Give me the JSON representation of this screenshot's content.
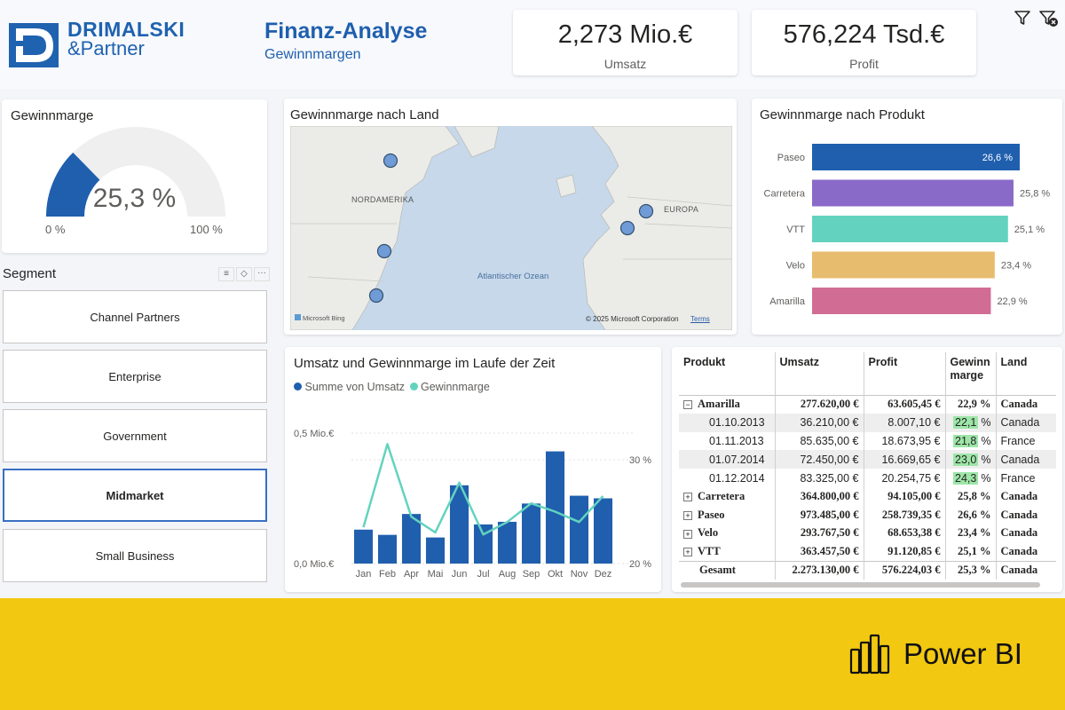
{
  "header": {
    "logo_line1": "DRIMALSKI",
    "logo_line2": "&Partner",
    "title": "Finanz-Analyse",
    "subtitle": "Gewinnmargen"
  },
  "kpis": [
    {
      "value": "2,273 Mio.€",
      "label": "Umsatz"
    },
    {
      "value": "576,224 Tsd.€",
      "label": "Profit"
    }
  ],
  "toolbar": {
    "filter_icon": "filter-icon",
    "clear_filter_icon": "clear-filter-icon"
  },
  "gauge": {
    "title": "Gewinnmarge",
    "value_label": "25,3 %",
    "value": 25.3,
    "min_label": "0 %",
    "max_label": "100 %",
    "fill_color": "#1f5fae",
    "track_color": "#efefef"
  },
  "segment": {
    "title": "Segment",
    "items": [
      "Channel Partners",
      "Enterprise",
      "Government",
      "Midmarket",
      "Small Business"
    ],
    "selected": "Midmarket"
  },
  "map": {
    "title": "Gewinnmarge nach Land",
    "labels": {
      "na": "NORDAMERIKA",
      "eu": "EUROPA",
      "ocean": "Atlantischer Ozean"
    },
    "attribution": "Microsoft Bing",
    "copyright": "© 2025 Microsoft Corporation",
    "terms": "Terms",
    "bubble_color": "#6f9bd6"
  },
  "product_chart": {
    "title": "Gewinnmarge nach Produkt"
  },
  "time_chart": {
    "title": "Umsatz und Gewinnmarge im Laufe der Zeit",
    "legend": [
      "Summe von Umsatz",
      "Gewinnmarge"
    ],
    "y_left_ticks": [
      "0,5 Mio.€",
      "0,0 Mio.€"
    ],
    "y_right_ticks": [
      "30 %",
      "20 %"
    ]
  },
  "chart_data": [
    {
      "type": "bar",
      "orientation": "horizontal",
      "title": "Gewinnmarge nach Produkt",
      "categories": [
        "Paseo",
        "Carretera",
        "VTT",
        "Velo",
        "Amarilla"
      ],
      "values": [
        26.6,
        25.8,
        25.1,
        23.4,
        22.9
      ],
      "labels": [
        "26,6 %",
        "25,8 %",
        "25,1 %",
        "23,4 %",
        "22,9 %"
      ],
      "colors": [
        "#1f5fae",
        "#8a6ac8",
        "#63d3bf",
        "#e8bc6e",
        "#d16d94"
      ]
    },
    {
      "type": "bar+line",
      "title": "Umsatz und Gewinnmarge im Laufe der Zeit",
      "categories": [
        "Jan",
        "Feb",
        "Apr",
        "Mai",
        "Jun",
        "Jul",
        "Aug",
        "Sep",
        "Okt",
        "Nov",
        "Dez"
      ],
      "series": [
        {
          "name": "Summe von Umsatz",
          "kind": "bar",
          "axis": "left",
          "color": "#1f5fae",
          "values": [
            0.13,
            0.11,
            0.19,
            0.1,
            0.3,
            0.15,
            0.16,
            0.23,
            0.43,
            0.26,
            0.25
          ]
        },
        {
          "name": "Gewinnmarge",
          "kind": "line",
          "axis": "right",
          "color": "#63d3bf",
          "values": [
            23.5,
            31.5,
            24.5,
            23.0,
            27.8,
            22.8,
            24.0,
            25.8,
            25.0,
            24.0,
            26.5
          ]
        }
      ],
      "y_left_range": [
        0,
        0.5
      ],
      "y_right_range": [
        20,
        30
      ]
    }
  ],
  "table": {
    "headers": [
      "Produkt",
      "Umsatz",
      "Profit",
      "Gewinn marge",
      "Land"
    ],
    "rows": [
      {
        "type": "parent",
        "expander": "⊟",
        "cells": [
          "Amarilla",
          "277.620,00 €",
          "63.605,45 €",
          "22,9 %",
          "Canada"
        ]
      },
      {
        "type": "child",
        "highlight": true,
        "cells": [
          "01.10.2013",
          "36.210,00 €",
          "8.007,10 €",
          "22,1",
          "Canada"
        ]
      },
      {
        "type": "child",
        "highlight": true,
        "cells": [
          "01.11.2013",
          "85.635,00 €",
          "18.673,95 €",
          "21,8",
          "France"
        ]
      },
      {
        "type": "child",
        "highlight": true,
        "cells": [
          "01.07.2014",
          "72.450,00 €",
          "16.669,65 €",
          "23,0",
          "Canada"
        ]
      },
      {
        "type": "child",
        "highlight": true,
        "cells": [
          "01.12.2014",
          "83.325,00 €",
          "20.254,75 €",
          "24,3",
          "France"
        ]
      },
      {
        "type": "parent",
        "expander": "⊞",
        "cells": [
          "Carretera",
          "364.800,00 €",
          "94.105,00 €",
          "25,8 %",
          "Canada"
        ]
      },
      {
        "type": "parent",
        "expander": "⊞",
        "cells": [
          "Paseo",
          "973.485,00 €",
          "258.739,35 €",
          "26,6 %",
          "Canada"
        ]
      },
      {
        "type": "parent",
        "expander": "⊞",
        "cells": [
          "Velo",
          "293.767,50 €",
          "68.653,38 €",
          "23,4 %",
          "Canada"
        ]
      },
      {
        "type": "parent",
        "expander": "⊞",
        "cells": [
          "VTT",
          "363.457,50 €",
          "91.120,85 €",
          "25,1 %",
          "Canada"
        ]
      },
      {
        "type": "total",
        "expander": "",
        "cells": [
          "Gesamt",
          "2.273.130,00 €",
          "576.224,03 €",
          "25,3 %",
          "Canada"
        ]
      }
    ],
    "pct_suffix": "%"
  },
  "footer": {
    "brand": "Power BI",
    "bg_color": "#f2c811"
  }
}
